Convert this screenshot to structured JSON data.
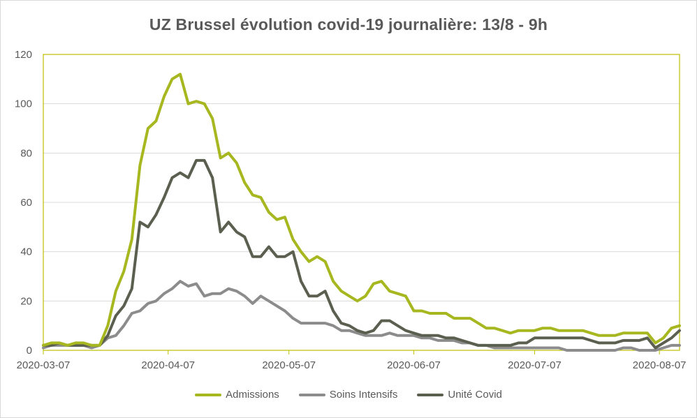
{
  "chart_data": {
    "type": "line",
    "title": "UZ Brussel évolution covid-19 journalière: 13/8 - 9h",
    "xlabel": "",
    "ylabel": "",
    "ylim": [
      0,
      120
    ],
    "y_ticks": [
      0,
      20,
      40,
      60,
      80,
      100,
      120
    ],
    "x_range": [
      "2020-03-07",
      "2020-08-12"
    ],
    "x_ticks": [
      "2020-03-07",
      "2020-04-07",
      "2020-05-07",
      "2020-06-07",
      "2020-07-07",
      "2020-08-07"
    ],
    "grid": "horizontal",
    "legend_position": "bottom",
    "x": [
      "2020-03-07",
      "2020-03-09",
      "2020-03-11",
      "2020-03-13",
      "2020-03-15",
      "2020-03-17",
      "2020-03-19",
      "2020-03-21",
      "2020-03-23",
      "2020-03-25",
      "2020-03-27",
      "2020-03-29",
      "2020-03-31",
      "2020-04-02",
      "2020-04-04",
      "2020-04-06",
      "2020-04-08",
      "2020-04-10",
      "2020-04-12",
      "2020-04-14",
      "2020-04-16",
      "2020-04-18",
      "2020-04-20",
      "2020-04-22",
      "2020-04-24",
      "2020-04-26",
      "2020-04-28",
      "2020-04-30",
      "2020-05-02",
      "2020-05-04",
      "2020-05-06",
      "2020-05-08",
      "2020-05-10",
      "2020-05-12",
      "2020-05-14",
      "2020-05-16",
      "2020-05-18",
      "2020-05-20",
      "2020-05-22",
      "2020-05-24",
      "2020-05-26",
      "2020-05-28",
      "2020-05-30",
      "2020-06-01",
      "2020-06-03",
      "2020-06-05",
      "2020-06-07",
      "2020-06-09",
      "2020-06-11",
      "2020-06-13",
      "2020-06-15",
      "2020-06-17",
      "2020-06-19",
      "2020-06-21",
      "2020-06-23",
      "2020-06-25",
      "2020-06-27",
      "2020-06-29",
      "2020-07-01",
      "2020-07-03",
      "2020-07-05",
      "2020-07-07",
      "2020-07-09",
      "2020-07-11",
      "2020-07-13",
      "2020-07-15",
      "2020-07-17",
      "2020-07-19",
      "2020-07-21",
      "2020-07-23",
      "2020-07-25",
      "2020-07-27",
      "2020-07-29",
      "2020-07-31",
      "2020-08-02",
      "2020-08-04",
      "2020-08-06",
      "2020-08-08",
      "2020-08-10",
      "2020-08-12"
    ],
    "series": [
      {
        "name": "Admissions",
        "color": "#a6b71f",
        "values": [
          2,
          3,
          3,
          2,
          3,
          3,
          2,
          2,
          10,
          24,
          32,
          45,
          75,
          90,
          93,
          103,
          110,
          112,
          100,
          101,
          100,
          94,
          78,
          80,
          76,
          68,
          63,
          62,
          56,
          53,
          54,
          45,
          40,
          36,
          38,
          36,
          28,
          24,
          22,
          20,
          22,
          27,
          28,
          24,
          23,
          22,
          16,
          16,
          15,
          15,
          15,
          13,
          13,
          13,
          11,
          9,
          9,
          8,
          7,
          8,
          8,
          8,
          9,
          9,
          8,
          8,
          8,
          8,
          7,
          6,
          6,
          6,
          7,
          7,
          7,
          7,
          3,
          5,
          9,
          10
        ]
      },
      {
        "name": "Soins Intensifs",
        "color": "#8c8c8c",
        "values": [
          1,
          2,
          2,
          2,
          2,
          2,
          1,
          2,
          5,
          6,
          10,
          15,
          16,
          19,
          20,
          23,
          25,
          28,
          26,
          27,
          22,
          23,
          23,
          25,
          24,
          22,
          19,
          22,
          20,
          18,
          16,
          13,
          11,
          11,
          11,
          11,
          10,
          8,
          8,
          7,
          6,
          6,
          6,
          7,
          6,
          6,
          6,
          5,
          5,
          4,
          4,
          4,
          3,
          3,
          2,
          2,
          1,
          1,
          1,
          1,
          1,
          1,
          1,
          1,
          1,
          0,
          0,
          0,
          0,
          0,
          0,
          0,
          1,
          1,
          0,
          0,
          0,
          1,
          2,
          2
        ]
      },
      {
        "name": "Unité Covid",
        "color": "#5b5f4f",
        "values": [
          2,
          2,
          3,
          2,
          2,
          2,
          2,
          2,
          6,
          14,
          18,
          25,
          52,
          50,
          55,
          62,
          70,
          72,
          70,
          77,
          77,
          70,
          48,
          52,
          48,
          46,
          38,
          38,
          42,
          38,
          38,
          40,
          28,
          22,
          22,
          24,
          16,
          11,
          10,
          8,
          7,
          8,
          12,
          12,
          10,
          8,
          7,
          6,
          6,
          6,
          5,
          5,
          4,
          3,
          2,
          2,
          2,
          2,
          2,
          3,
          3,
          5,
          5,
          5,
          5,
          5,
          5,
          5,
          4,
          3,
          3,
          3,
          4,
          4,
          4,
          5,
          1,
          3,
          5,
          8
        ]
      }
    ]
  }
}
